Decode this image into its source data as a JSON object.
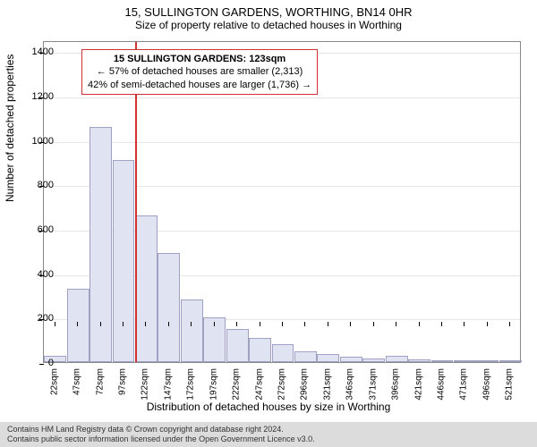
{
  "title_main": "15, SULLINGTON GARDENS, WORTHING, BN14 0HR",
  "title_sub": "Size of property relative to detached houses in Worthing",
  "chart": {
    "type": "histogram",
    "background_color": "#ffffff",
    "grid_color": "#e6e6e6",
    "axis_color": "#888888",
    "bar_fill": "#dfe3f2",
    "bar_stroke": "#a0a0c0",
    "marker_color": "#d03030",
    "ylabel": "Number of detached properties",
    "ylabel_fontsize": 12,
    "xlabel": "Distribution of detached houses by size in Worthing",
    "xlabel_fontsize": 12,
    "ylim": [
      0,
      1450
    ],
    "yticks": [
      0,
      200,
      400,
      600,
      800,
      1000,
      1200,
      1400
    ],
    "ytick_fontsize": 11,
    "xtick_fontsize": 10,
    "bar_width_ratio": 0.98,
    "categories": [
      "22sqm",
      "47sqm",
      "72sqm",
      "97sqm",
      "122sqm",
      "147sqm",
      "172sqm",
      "197sqm",
      "222sqm",
      "247sqm",
      "272sqm",
      "296sqm",
      "321sqm",
      "346sqm",
      "371sqm",
      "396sqm",
      "421sqm",
      "446sqm",
      "471sqm",
      "496sqm",
      "521sqm"
    ],
    "values": [
      30,
      330,
      1060,
      910,
      660,
      490,
      280,
      200,
      150,
      110,
      80,
      50,
      35,
      25,
      15,
      30,
      12,
      8,
      5,
      5,
      4
    ],
    "marker_x": 123,
    "marker_bin_index": 4
  },
  "annotation": {
    "line1": "15 SULLINGTON GARDENS: 123sqm",
    "line2": "← 57% of detached houses are smaller (2,313)",
    "line3": "42% of semi-detached houses are larger (1,736) →",
    "border_color": "#d03030",
    "fontsize": 11
  },
  "footer": {
    "line1": "Contains HM Land Registry data © Crown copyright and database right 2024.",
    "line2": "Contains public sector information licensed under the Open Government Licence v3.0.",
    "background_color": "#dcdcdc"
  }
}
